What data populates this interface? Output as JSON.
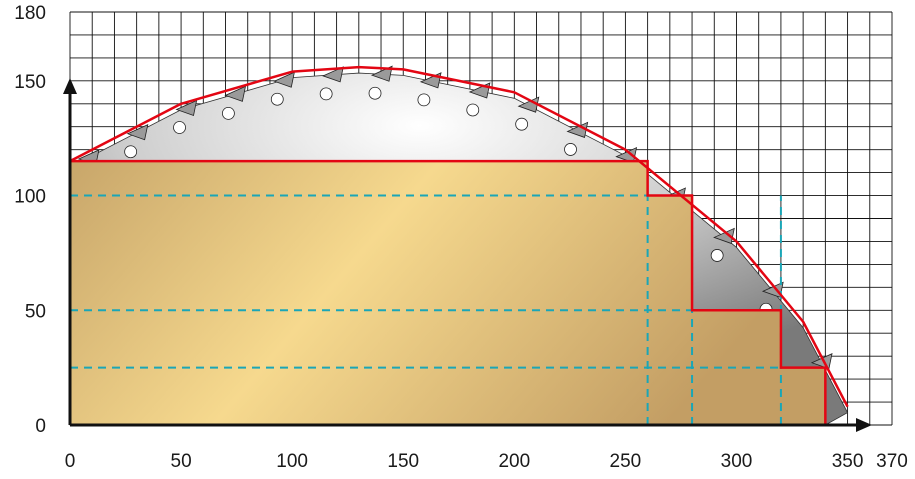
{
  "chart_data": {
    "type": "area",
    "title": "",
    "xlabel": "",
    "ylabel": "",
    "xlim": [
      0,
      370
    ],
    "ylim": [
      0,
      180
    ],
    "x_ticks": [
      0,
      50,
      100,
      150,
      200,
      250,
      300,
      350,
      370
    ],
    "y_ticks": [
      0,
      50,
      100,
      150,
      180
    ],
    "grid": true,
    "grid_step": 10,
    "series": [
      {
        "kind": "step-profile",
        "points": [
          [
            0,
            115
          ],
          [
            260,
            115
          ],
          [
            260,
            100
          ],
          [
            280,
            100
          ],
          [
            280,
            50
          ],
          [
            320,
            50
          ],
          [
            320,
            25
          ],
          [
            340,
            25
          ],
          [
            340,
            0
          ]
        ]
      },
      {
        "kind": "arc",
        "points": [
          [
            0,
            115
          ],
          [
            50,
            140
          ],
          [
            100,
            154
          ],
          [
            130,
            156
          ],
          [
            150,
            155
          ],
          [
            200,
            145
          ],
          [
            250,
            120
          ],
          [
            300,
            80
          ],
          [
            330,
            45
          ],
          [
            350,
            8
          ]
        ]
      }
    ],
    "reference_lines": {
      "horizontal_y": [
        100,
        50,
        25
      ],
      "vertical_x": [
        260,
        280,
        320
      ]
    }
  },
  "colors": {
    "grid": "#111111",
    "profile": "#e30613",
    "guides": "#1aa6b7",
    "fill_light": "#f6d98e",
    "fill_dark": "#c8a66a",
    "blade_light": "#f4f4f4",
    "blade_dark": "#888888"
  }
}
